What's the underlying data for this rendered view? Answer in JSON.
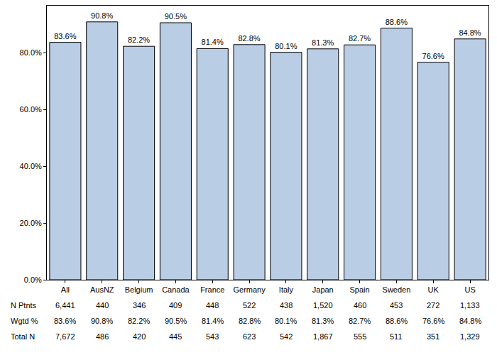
{
  "chart_data": {
    "type": "bar",
    "categories": [
      "All",
      "AusNZ",
      "Belgium",
      "Canada",
      "France",
      "Germany",
      "Italy",
      "Japan",
      "Spain",
      "Sweden",
      "UK",
      "US"
    ],
    "values": [
      83.6,
      90.8,
      82.2,
      90.5,
      81.4,
      82.8,
      80.1,
      81.3,
      82.7,
      88.6,
      76.6,
      84.8
    ],
    "value_labels": [
      "83.6%",
      "90.8%",
      "82.2%",
      "90.5%",
      "81.4%",
      "82.8%",
      "80.1%",
      "81.3%",
      "82.7%",
      "88.6%",
      "76.6%",
      "84.8%"
    ],
    "data_labels": true,
    "color": "#b9cde5",
    "ylim": [
      0,
      96.5
    ],
    "yticks": [
      {
        "value": 0,
        "label": "0.0%"
      },
      {
        "value": 20,
        "label": "20.0%"
      },
      {
        "value": 40,
        "label": "40.0%"
      },
      {
        "value": 60,
        "label": "60.0%"
      },
      {
        "value": 80,
        "label": "80.0%"
      }
    ],
    "grid": false,
    "table_rows": [
      {
        "label": "N Ptnts",
        "cells": [
          "6,441",
          "440",
          "346",
          "409",
          "448",
          "522",
          "438",
          "1,520",
          "460",
          "453",
          "272",
          "1,133"
        ]
      },
      {
        "label": "Wgtd %",
        "cells": [
          "83.6%",
          "90.8%",
          "82.2%",
          "90.5%",
          "81.4%",
          "82.8%",
          "80.1%",
          "81.3%",
          "82.7%",
          "88.6%",
          "76.6%",
          "84.8%"
        ]
      },
      {
        "label": "Total N",
        "cells": [
          "7,672",
          "486",
          "420",
          "445",
          "543",
          "623",
          "542",
          "1,867",
          "555",
          "511",
          "351",
          "1,329"
        ]
      }
    ]
  }
}
